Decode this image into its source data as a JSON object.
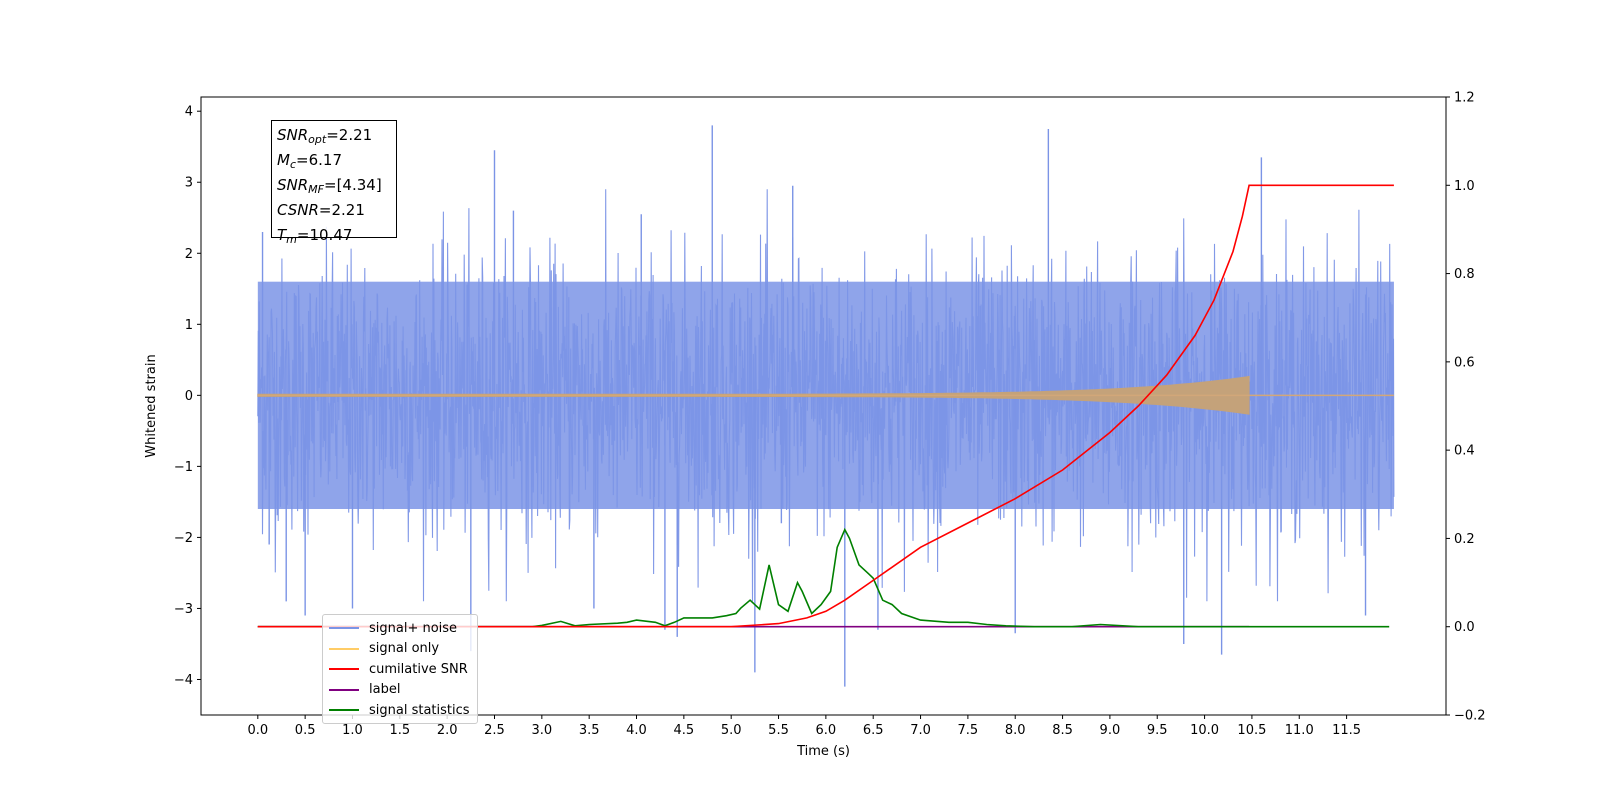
{
  "chart_data": {
    "type": "line",
    "title": "",
    "xlabel": "Time (s)",
    "ylabel": "Whitened strain",
    "y2label": "",
    "xlim": [
      -0.6,
      12.55
    ],
    "ylim": [
      -4.5,
      4.2
    ],
    "y2lim": [
      -0.2,
      1.2
    ],
    "xticks": [
      "0.0",
      "0.5",
      "1.0",
      "1.5",
      "2.0",
      "2.5",
      "3.0",
      "3.5",
      "4.0",
      "4.5",
      "5.0",
      "5.5",
      "6.0",
      "6.5",
      "7.0",
      "7.5",
      "8.0",
      "8.5",
      "9.0",
      "9.5",
      "10.0",
      "10.5",
      "11.0",
      "11.5"
    ],
    "yticks": [
      "4",
      "3",
      "2",
      "1",
      "0",
      "−1",
      "−2",
      "−3",
      "−4"
    ],
    "y2ticks": [
      "1.2",
      "1.0",
      "0.8",
      "0.6",
      "0.4",
      "0.2",
      "0.0",
      "−0.2"
    ],
    "grid": false,
    "legend_position": "lower-left",
    "series": [
      {
        "name": "signal+ noise",
        "axis": "left",
        "color": "#7b94e6",
        "description_range": [
          -2.0,
          2.0
        ],
        "x_range": [
          0.0,
          12.0
        ],
        "spikes": [
          {
            "x": 0.05,
            "y": 2.3
          },
          {
            "x": 0.12,
            "y": -2.1
          },
          {
            "x": 0.3,
            "y": -2.9
          },
          {
            "x": 0.5,
            "y": -3.1
          },
          {
            "x": 1.0,
            "y": -3.0
          },
          {
            "x": 2.25,
            "y": -3.6
          },
          {
            "x": 2.5,
            "y": 3.45
          },
          {
            "x": 2.7,
            "y": 2.6
          },
          {
            "x": 3.55,
            "y": -3.0
          },
          {
            "x": 4.05,
            "y": 2.55
          },
          {
            "x": 4.3,
            "y": -3.3
          },
          {
            "x": 4.43,
            "y": -3.4
          },
          {
            "x": 4.8,
            "y": 3.8
          },
          {
            "x": 5.25,
            "y": -3.9
          },
          {
            "x": 5.53,
            "y": -1.8
          },
          {
            "x": 5.65,
            "y": 2.95
          },
          {
            "x": 6.2,
            "y": -4.1
          },
          {
            "x": 6.55,
            "y": -3.3
          },
          {
            "x": 8.35,
            "y": 3.75
          },
          {
            "x": 8.0,
            "y": -3.35
          },
          {
            "x": 9.78,
            "y": -3.5
          },
          {
            "x": 10.18,
            "y": -3.65
          },
          {
            "x": 10.6,
            "y": 3.35
          },
          {
            "x": 11.7,
            "y": -3.1
          }
        ]
      },
      {
        "name": "signal only",
        "axis": "left",
        "color": "#ffb347",
        "chirp_end": 10.47,
        "peak_amplitude": 0.25
      },
      {
        "name": "cumilative SNR",
        "axis": "right",
        "color": "#ff0000",
        "x": [
          0.0,
          3.0,
          5.0,
          5.5,
          5.8,
          6.0,
          6.2,
          6.5,
          7.0,
          7.5,
          8.0,
          8.5,
          9.0,
          9.3,
          9.6,
          9.9,
          10.1,
          10.3,
          10.4,
          10.47,
          10.48,
          12.0
        ],
        "values": [
          0.0,
          0.0,
          0.0,
          0.007,
          0.02,
          0.035,
          0.06,
          0.105,
          0.18,
          0.235,
          0.29,
          0.355,
          0.44,
          0.5,
          0.57,
          0.66,
          0.74,
          0.85,
          0.93,
          1.0,
          1.0,
          1.0
        ]
      },
      {
        "name": "label",
        "axis": "right",
        "color": "#800080",
        "x": [
          0.0,
          10.47
        ],
        "values": [
          0.0,
          0.0
        ]
      },
      {
        "name": "signal statistics",
        "axis": "right",
        "color": "#008000",
        "x": [
          0.0,
          2.9,
          3.0,
          3.2,
          3.35,
          3.5,
          3.8,
          3.9,
          4.0,
          4.2,
          4.3,
          4.4,
          4.5,
          4.8,
          4.95,
          5.05,
          5.1,
          5.2,
          5.3,
          5.4,
          5.5,
          5.6,
          5.7,
          5.75,
          5.85,
          5.95,
          6.05,
          6.12,
          6.2,
          6.25,
          6.35,
          6.45,
          6.5,
          6.6,
          6.7,
          6.8,
          7.0,
          7.3,
          7.5,
          7.7,
          7.9,
          8.2,
          8.6,
          8.9,
          9.3,
          11.95
        ],
        "values": [
          0.0,
          0.0,
          0.003,
          0.012,
          0.002,
          0.005,
          0.008,
          0.01,
          0.015,
          0.01,
          0.002,
          0.01,
          0.02,
          0.02,
          0.025,
          0.03,
          0.042,
          0.06,
          0.04,
          0.14,
          0.05,
          0.035,
          0.1,
          0.08,
          0.03,
          0.05,
          0.08,
          0.18,
          0.22,
          0.2,
          0.14,
          0.12,
          0.11,
          0.06,
          0.05,
          0.03,
          0.015,
          0.01,
          0.01,
          0.005,
          0.002,
          0.0,
          0.0,
          0.005,
          0.0,
          0.0
        ]
      }
    ],
    "annotation": {
      "lines": [
        {
          "sym": "SNR",
          "sub": "opt",
          "value": "=2.21"
        },
        {
          "sym": "M",
          "sub": "c",
          "value": "=6.17"
        },
        {
          "sym": "SNR",
          "sub": "MF",
          "value": "=[4.34]"
        },
        {
          "sym": "CSNR",
          "sub": "",
          "value": "=2.21"
        },
        {
          "sym": "T",
          "sub": "m",
          "value": "=10.47"
        }
      ]
    },
    "legend": [
      {
        "label": "signal+ noise",
        "color": "#7b94e6"
      },
      {
        "label": "signal only",
        "color": "#ffcc66"
      },
      {
        "label": "cumilative SNR",
        "color": "#ff0000"
      },
      {
        "label": "label",
        "color": "#800080"
      },
      {
        "label": "signal statistics",
        "color": "#008000"
      }
    ]
  }
}
